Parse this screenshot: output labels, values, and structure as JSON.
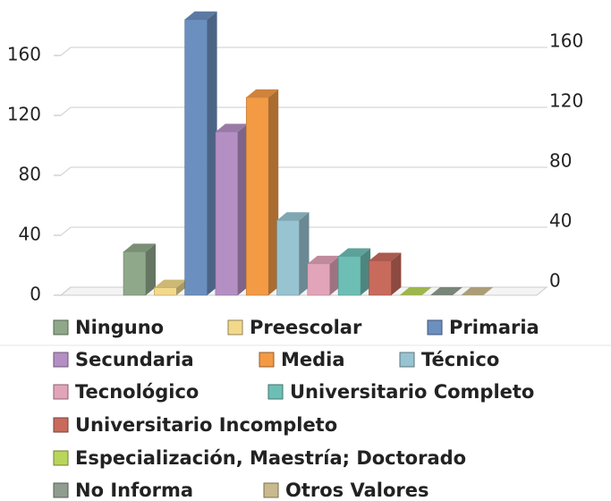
{
  "chart_data": {
    "type": "bar3d",
    "series": [
      {
        "name": "Ninguno",
        "color": "#8fa88a",
        "values": [
          29
        ]
      },
      {
        "name": "Preescolar",
        "color": "#f2d98a",
        "values": [
          5
        ]
      },
      {
        "name": "Primaria",
        "color": "#6b8fbf",
        "values": [
          184
        ]
      },
      {
        "name": "Secundaria",
        "color": "#b48fc4",
        "values": [
          109
        ]
      },
      {
        "name": "Media",
        "color": "#f39a45",
        "values": [
          132
        ]
      },
      {
        "name": "Técnico",
        "color": "#97c4d0",
        "values": [
          50
        ]
      },
      {
        "name": "Tecnológico",
        "color": "#e2a4b8",
        "values": [
          21
        ]
      },
      {
        "name": "Universitario Completo",
        "color": "#6dbfb5",
        "values": [
          26
        ]
      },
      {
        "name": "Universitario Incompleto",
        "color": "#c86a5c",
        "values": [
          23
        ]
      },
      {
        "name": "Especialización, Maestría; Doctorado",
        "color": "#b9d65a",
        "values": [
          0
        ]
      },
      {
        "name": "No Informa",
        "color": "#8f9c8f",
        "values": [
          0
        ]
      },
      {
        "name": "Otros Valores",
        "color": "#c9b98c",
        "values": [
          0
        ]
      }
    ],
    "ylim": [
      0,
      190
    ],
    "yticks": [
      0,
      40,
      80,
      120,
      160
    ],
    "y2lim": [
      0,
      190
    ],
    "y2ticks": [
      0,
      40,
      80,
      120,
      160
    ],
    "grid": true
  }
}
